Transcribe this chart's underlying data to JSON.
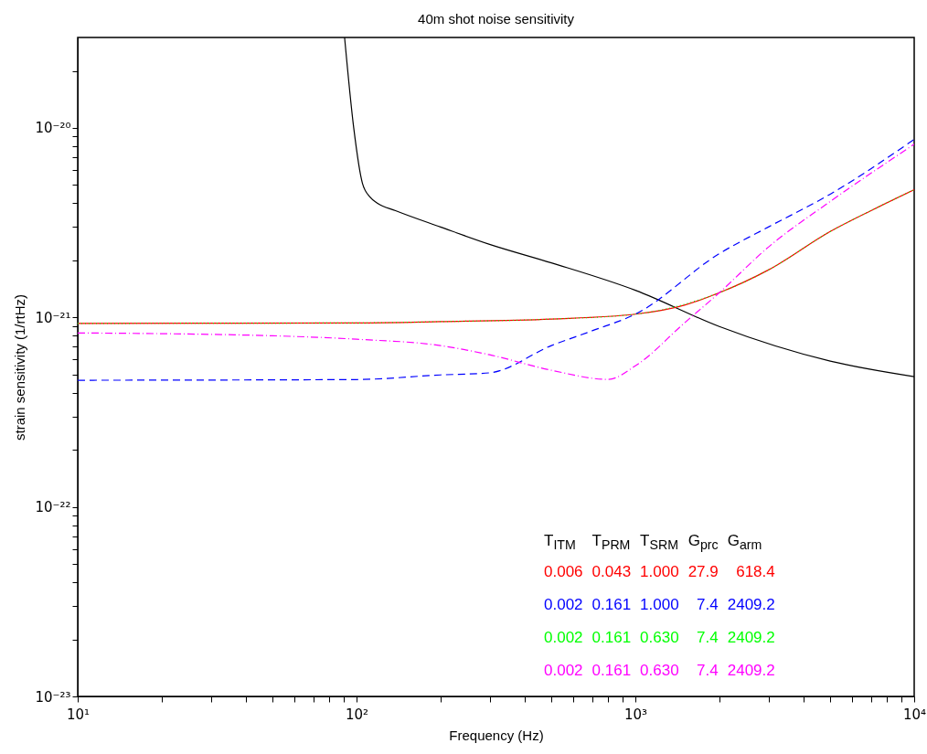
{
  "chart_data": {
    "type": "line",
    "title": "40m shot noise sensitivity",
    "xlabel": "Frequency (Hz)",
    "ylabel": "strain sensitivity (1/rtHz)",
    "log": "xy",
    "grid": false,
    "xlim": [
      10,
      10000
    ],
    "ylim": [
      1e-23,
      3e-20
    ],
    "xticks": [
      {
        "value": 10,
        "label": "10¹"
      },
      {
        "value": 20,
        "label": null
      },
      {
        "value": 30,
        "label": null
      },
      {
        "value": 40,
        "label": null
      },
      {
        "value": 50,
        "label": null
      },
      {
        "value": 60,
        "label": null
      },
      {
        "value": 70,
        "label": null
      },
      {
        "value": 80,
        "label": null
      },
      {
        "value": 90,
        "label": null
      },
      {
        "value": 100,
        "label": "10²"
      },
      {
        "value": 200,
        "label": null
      },
      {
        "value": 300,
        "label": null
      },
      {
        "value": 400,
        "label": null
      },
      {
        "value": 500,
        "label": null
      },
      {
        "value": 600,
        "label": null
      },
      {
        "value": 700,
        "label": null
      },
      {
        "value": 800,
        "label": null
      },
      {
        "value": 900,
        "label": null
      },
      {
        "value": 1000,
        "label": "10³"
      },
      {
        "value": 2000,
        "label": null
      },
      {
        "value": 3000,
        "label": null
      },
      {
        "value": 4000,
        "label": null
      },
      {
        "value": 5000,
        "label": null
      },
      {
        "value": 6000,
        "label": null
      },
      {
        "value": 7000,
        "label": null
      },
      {
        "value": 8000,
        "label": null
      },
      {
        "value": 9000,
        "label": null
      },
      {
        "value": 10000,
        "label": "10⁴"
      }
    ],
    "yticks": [
      {
        "value": 1e-23,
        "label": "10⁻²³"
      },
      {
        "value": 2e-23,
        "label": null
      },
      {
        "value": 3e-23,
        "label": null
      },
      {
        "value": 4e-23,
        "label": null
      },
      {
        "value": 5e-23,
        "label": null
      },
      {
        "value": 6e-23,
        "label": null
      },
      {
        "value": 7e-23,
        "label": null
      },
      {
        "value": 8e-23,
        "label": null
      },
      {
        "value": 9e-23,
        "label": null
      },
      {
        "value": 1e-22,
        "label": "10⁻²²"
      },
      {
        "value": 2e-22,
        "label": null
      },
      {
        "value": 3e-22,
        "label": null
      },
      {
        "value": 4e-22,
        "label": null
      },
      {
        "value": 5e-22,
        "label": null
      },
      {
        "value": 6e-22,
        "label": null
      },
      {
        "value": 7e-22,
        "label": null
      },
      {
        "value": 8e-22,
        "label": null
      },
      {
        "value": 9e-22,
        "label": null
      },
      {
        "value": 1e-21,
        "label": "10⁻²¹"
      },
      {
        "value": 2e-21,
        "label": null
      },
      {
        "value": 3e-21,
        "label": null
      },
      {
        "value": 4e-21,
        "label": null
      },
      {
        "value": 5e-21,
        "label": null
      },
      {
        "value": 6e-21,
        "label": null
      },
      {
        "value": 7e-21,
        "label": null
      },
      {
        "value": 8e-21,
        "label": null
      },
      {
        "value": 9e-21,
        "label": null
      },
      {
        "value": 1e-20,
        "label": "10⁻²⁰"
      },
      {
        "value": 2e-20,
        "label": null
      }
    ],
    "series": [
      {
        "color": "#000000",
        "line_style": "solid",
        "x": [
          90.6,
          97.7,
          105,
          112,
          119,
          138,
          200,
          300,
          500,
          1000,
          2000,
          5000,
          10000
        ],
        "values": [
          3e-20,
          1e-20,
          5.1e-21,
          4.3e-21,
          4e-21,
          3.66e-21,
          3e-21,
          2.43e-21,
          1.94e-21,
          1.39e-21,
          8.95e-22,
          5.88e-22,
          4.87e-22
        ]
      },
      {
        "color": "#ff0000",
        "line_style": "solid",
        "x": [
          10,
          100,
          200,
          500,
          1000,
          1500,
          2000,
          3000,
          5000,
          7000,
          10000
        ],
        "values": [
          9.3e-22,
          9.35e-22,
          9.5e-22,
          9.8e-22,
          1.04e-21,
          1.16e-21,
          1.35e-21,
          1.78e-21,
          2.84e-21,
          3.66e-21,
          4.72e-21
        ]
      },
      {
        "color": "#0000ff",
        "line_style": "dashed",
        "x": [
          10,
          100,
          200,
          300,
          500,
          700,
          1000,
          2000,
          3000,
          5000,
          10000
        ],
        "values": [
          4.66e-22,
          4.7e-22,
          4.97e-22,
          5.1e-22,
          7.1e-22,
          8.5e-22,
          1.04e-21,
          2.17e-21,
          3e-21,
          4.47e-21,
          8.7e-21
        ]
      },
      {
        "color": "#00ff00",
        "line_style": "dotted",
        "x": [
          10,
          100,
          200,
          500,
          1000,
          2000,
          3000,
          5000,
          7000,
          10000
        ],
        "values": [
          9.3e-22,
          9.35e-22,
          9.5e-22,
          9.8e-22,
          1.04e-21,
          1.35e-21,
          1.78e-21,
          2.84e-21,
          3.66e-21,
          4.72e-21
        ]
      },
      {
        "color": "#ff00ff",
        "line_style": "dashdot",
        "x": [
          10,
          50,
          100,
          200,
          300,
          500,
          800,
          1000,
          1500,
          2000,
          3000,
          5000,
          10000
        ],
        "values": [
          8.28e-22,
          8e-22,
          7.67e-22,
          7.1e-22,
          6.35e-22,
          5.26e-22,
          4.71e-22,
          5.55e-22,
          9.35e-22,
          1.35e-21,
          2.35e-21,
          4.09e-21,
          8.2e-21
        ]
      }
    ],
    "annotations": [
      "T$_{ITM}$ T$_{PRM}$ T$_{SRM}$ G$_{prc}$ G$_{arm}$",
      "0.006 0.043 1.000 27.9 618.4",
      "0.002 0.161 1.000 7.4 2409.2",
      "0.002 0.161 0.630 7.4 2409.2",
      "0.002 0.161 0.630 7.4 2409.2"
    ]
  }
}
